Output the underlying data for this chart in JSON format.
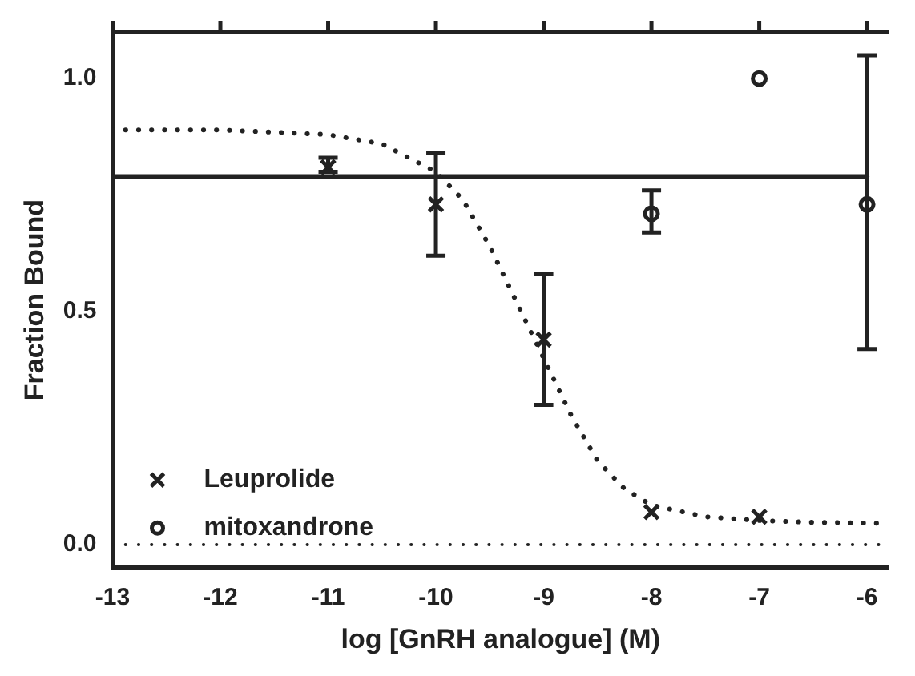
{
  "chart_data": {
    "type": "scatter",
    "xlabel": "log [GnRH analogue] (M)",
    "ylabel": "Fraction Bound",
    "xlim": [
      -13,
      -5.8
    ],
    "xticks": [
      -13,
      -12,
      -11,
      -10,
      -9,
      -8,
      -7,
      -6
    ],
    "ylim": [
      -0.05,
      1.1
    ],
    "yticks": [
      {
        "value": 0,
        "label": "0.0"
      },
      0.5,
      {
        "value": 1,
        "label": "1.0"
      }
    ],
    "grid": false,
    "legend": "bottom left",
    "ref_lines": [
      {
        "axis": "y",
        "value": 0,
        "line_style": "dotted",
        "color": "#222222"
      }
    ],
    "series": [
      {
        "name": "Leuprolide",
        "marker": "cross",
        "color": "#222222",
        "x": [
          -11,
          -10,
          -9,
          -8,
          -7
        ],
        "values": [
          0.81,
          0.73,
          0.44,
          0.07,
          0.06
        ],
        "errors": [
          [
            0.8,
            0.83
          ],
          [
            0.62,
            0.84
          ],
          [
            0.3,
            0.58
          ],
          null,
          null
        ]
      },
      {
        "name": "mitoxandrone",
        "marker": "circle",
        "color": "#222222",
        "x": [
          -8,
          -7,
          -6
        ],
        "values": [
          0.71,
          1.0,
          0.73
        ],
        "errors": [
          [
            0.67,
            0.76
          ],
          null,
          [
            0.42,
            1.05
          ]
        ]
      },
      {
        "type": "line",
        "line_style": "dotted",
        "marker": "none",
        "color": "#222222",
        "x": [
          -13,
          -12,
          -11,
          -10.5,
          -10,
          -9.75,
          -9.5,
          -9.25,
          -9,
          -8.75,
          -8.5,
          -8.25,
          -8,
          -7.5,
          -7,
          -6.5,
          -5.8
        ],
        "values": [
          0.89,
          0.89,
          0.88,
          0.86,
          0.8,
          0.74,
          0.64,
          0.52,
          0.4,
          0.28,
          0.18,
          0.12,
          0.085,
          0.06,
          0.052,
          0.048,
          0.046
        ]
      },
      {
        "type": "line",
        "line_style": "solid",
        "marker": "none",
        "color": "#222222",
        "x": [
          -13,
          -6
        ],
        "values": [
          0.79,
          0.79
        ]
      }
    ]
  }
}
